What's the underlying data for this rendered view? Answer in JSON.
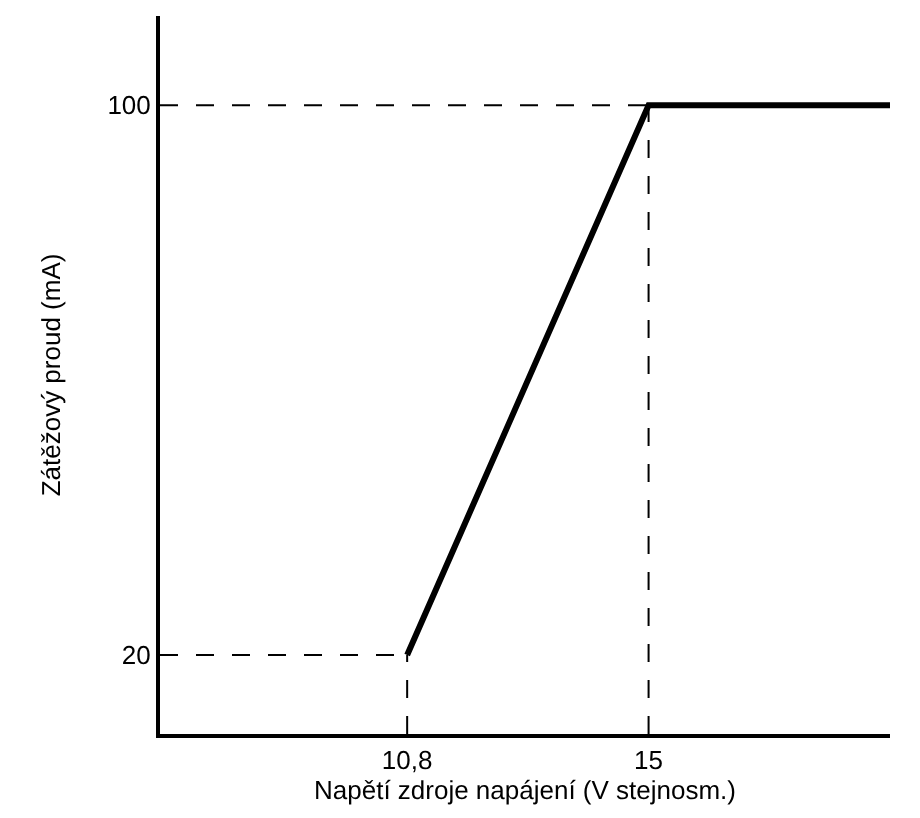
{
  "chart_data": {
    "type": "line",
    "xlabel": "Napětí zdroje napájení (V stejnosm.)",
    "ylabel": "Zátěžový proud (mA)",
    "x": [
      10.8,
      15,
      19.2
    ],
    "series": [
      {
        "color": "#000000",
        "values": [
          20,
          100,
          100
        ]
      }
    ],
    "xlim": [
      6.5,
      19.2
    ],
    "ylim": [
      8.5,
      113
    ],
    "xticks": [
      {
        "value": 10.8,
        "label": "10,8"
      },
      15
    ],
    "yticks": [
      20,
      100
    ],
    "ref_lines": [
      {
        "axis": "y",
        "value": 100,
        "line_style": "dashed",
        "color": "#000000"
      },
      {
        "axis": "y",
        "value": 20,
        "line_style": "dashed",
        "color": "#000000"
      },
      {
        "axis": "x",
        "value": 10.8,
        "line_style": "dashed",
        "color": "#000000"
      },
      {
        "axis": "x",
        "value": 15,
        "line_style": "dashed",
        "color": "#000000"
      }
    ],
    "marker": "none",
    "line_style": "solid"
  }
}
